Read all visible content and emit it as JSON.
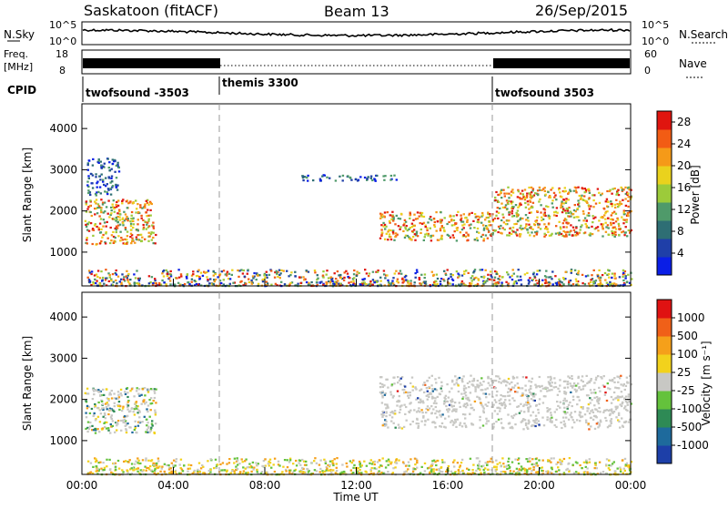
{
  "header": {
    "station": "Saskatoon (fitACF)",
    "beam": "Beam 13",
    "date": "26/Sep/2015"
  },
  "noise_panel": {
    "left_label": "N.Sky",
    "right_label": "N.Search",
    "ticks_left": [
      "10^5",
      "10^0"
    ],
    "ticks_right": [
      "10^5",
      "10^0"
    ]
  },
  "freq_panel": {
    "left_label_1": "Freq.",
    "left_label_2": "[MHz]",
    "right_label": "Nave",
    "ticks_left": [
      "18",
      "8"
    ],
    "ticks_right": [
      "60",
      "0"
    ]
  },
  "cpid": {
    "label": "CPID",
    "segments": [
      {
        "name": "twofsound -3503",
        "start_h": 0,
        "end_h": 6
      },
      {
        "name": "themis 3300",
        "start_h": 6,
        "end_h": 18
      },
      {
        "name": "twofsound 3503",
        "start_h": 18,
        "end_h": 24
      }
    ]
  },
  "chart_data": [
    {
      "type": "heatmap",
      "panel": "power",
      "ylabel": "Slant Range [km]",
      "yticks": [
        1000,
        2000,
        3000,
        4000
      ],
      "ylim": [
        180,
        4600
      ],
      "xlim_hours": [
        0,
        24
      ],
      "colorbar": {
        "label": "Power [dB]",
        "ticks": [
          4,
          8,
          12,
          16,
          20,
          24,
          28
        ],
        "range": [
          0,
          30
        ],
        "colors": [
          "#0a1ee6",
          "#1f3fa8",
          "#2e6e74",
          "#4f9a6a",
          "#9ccb3a",
          "#ead21d",
          "#f59a18",
          "#f25c14",
          "#e0150f"
        ]
      },
      "echo_regions": [
        {
          "t0": 0.1,
          "t1": 3.2,
          "r0": 1200,
          "r1": 2300,
          "level": "strong"
        },
        {
          "t0": 0.2,
          "t1": 1.6,
          "r0": 2400,
          "r1": 3300,
          "level": "weak"
        },
        {
          "t0": 13.0,
          "t1": 18.0,
          "r0": 1300,
          "r1": 2000,
          "level": "strong"
        },
        {
          "t0": 18.0,
          "t1": 24.0,
          "r0": 1400,
          "r1": 2600,
          "level": "strong"
        },
        {
          "t0": 9.5,
          "t1": 14.0,
          "r0": 2750,
          "r1": 2900,
          "level": "weak"
        },
        {
          "t0": 0.2,
          "t1": 24.0,
          "r0": 200,
          "r1": 600,
          "level": "ground"
        }
      ]
    },
    {
      "type": "heatmap",
      "panel": "velocity",
      "ylabel": "Slant Range [km]",
      "yticks": [
        1000,
        2000,
        3000,
        4000
      ],
      "ylim": [
        180,
        4600
      ],
      "xlim_hours": [
        0,
        24
      ],
      "xlabel": "Time UT",
      "xticks": [
        "00:00",
        "04:00",
        "08:00",
        "12:00",
        "16:00",
        "20:00",
        "00:00"
      ],
      "colorbar": {
        "label": "Velocity [m s⁻¹]",
        "ticks": [
          "1000",
          "500",
          "100",
          "25",
          "-25",
          "-100",
          "-500",
          "-1000"
        ],
        "colors": [
          "#1d3fa8",
          "#1e6a9c",
          "#2e8a55",
          "#64c23c",
          "#c8c8c4",
          "#f2d21c",
          "#f5a01a",
          "#f06018",
          "#e01212"
        ]
      },
      "echo_regions": [
        {
          "t0": 0.1,
          "t1": 3.2,
          "r0": 1200,
          "r1": 2300,
          "level": "mixed"
        },
        {
          "t0": 13.0,
          "t1": 24.0,
          "r0": 1300,
          "r1": 2600,
          "level": "grey"
        },
        {
          "t0": 0.2,
          "t1": 24.0,
          "r0": 200,
          "r1": 600,
          "level": "ground"
        }
      ]
    }
  ]
}
